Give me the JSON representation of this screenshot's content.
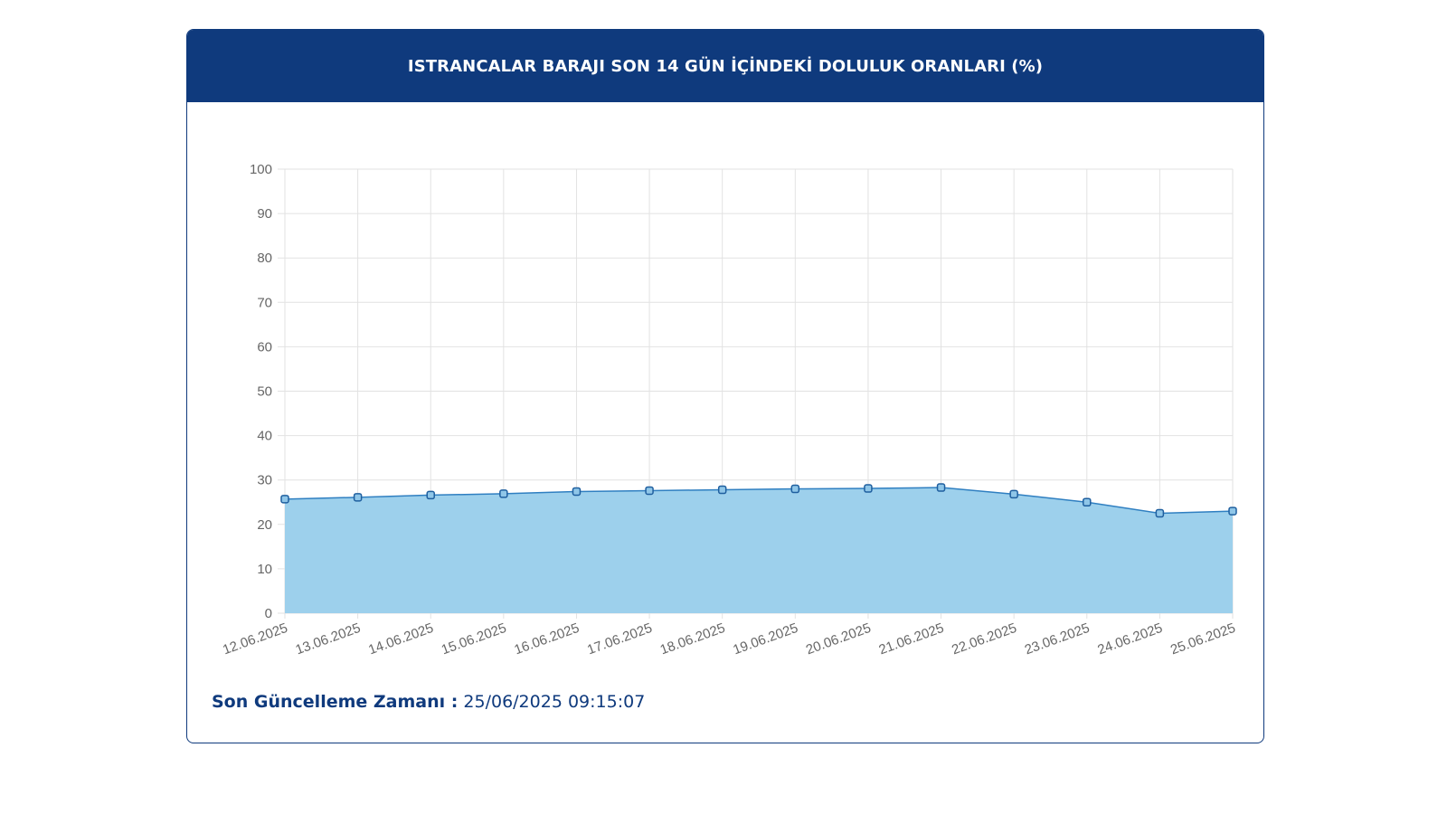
{
  "header": {
    "title": "ISTRANCALAR BARAJI SON 14 GÜN İÇİNDEKİ DOLULUK ORANLARI (%)"
  },
  "footer": {
    "label": "Son Güncelleme Zamanı :",
    "value": " 25/06/2025 09:15:07"
  },
  "colors": {
    "header_bg": "#0f3a7d",
    "line": "#2f7fc1",
    "fill": "#9dd0ec",
    "grid": "#e2e2e2"
  },
  "chart_data": {
    "type": "area",
    "categories": [
      "12.06.2025",
      "13.06.2025",
      "14.06.2025",
      "15.06.2025",
      "16.06.2025",
      "17.06.2025",
      "18.06.2025",
      "19.06.2025",
      "20.06.2025",
      "21.06.2025",
      "22.06.2025",
      "23.06.2025",
      "24.06.2025",
      "25.06.2025"
    ],
    "values": [
      25.7,
      26.1,
      26.6,
      26.9,
      27.4,
      27.6,
      27.8,
      28.0,
      28.1,
      28.3,
      26.8,
      25.0,
      22.5,
      23.0
    ],
    "ylim": [
      0,
      100
    ],
    "yticks": [
      0,
      10,
      20,
      30,
      40,
      50,
      60,
      70,
      80,
      90,
      100
    ],
    "grid": true
  }
}
